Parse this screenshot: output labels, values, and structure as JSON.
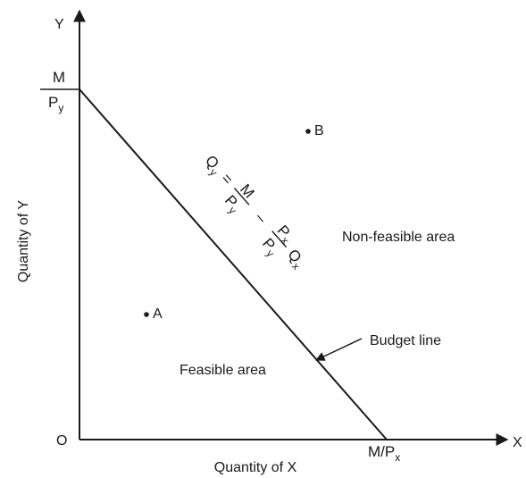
{
  "axes": {
    "x_axis_label": "X",
    "y_axis_label": "Y",
    "origin_label": "O",
    "x_title": "Quantity of X",
    "y_title": "Quantity of Y"
  },
  "intercepts": {
    "y_numerator": "M",
    "y_denominator_base": "P",
    "y_denominator_sub": "y",
    "x_base": "M/P",
    "x_sub": "x"
  },
  "equation": {
    "lhs_base": "Q",
    "lhs_sub": "y",
    "equals": "=",
    "frac1_num": "M",
    "frac1_den_base": "P",
    "frac1_den_sub": "y",
    "minus": "–",
    "frac2_num_base": "P",
    "frac2_num_sub": "x",
    "frac2_den_base": "P",
    "frac2_den_sub": "y",
    "rhs_base": "Q",
    "rhs_sub": "x"
  },
  "points": [
    {
      "label": "A"
    },
    {
      "label": "B"
    }
  ],
  "regions": {
    "feasible": "Feasible area",
    "non_feasible": "Non-feasible area"
  },
  "annotation": {
    "budget_line": "Budget line"
  },
  "colors": {
    "ink": "#1a1a1a",
    "background": "#ffffff"
  }
}
